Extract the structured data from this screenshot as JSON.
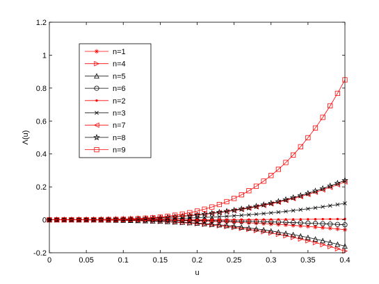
{
  "chart_data": {
    "type": "line",
    "title": "",
    "xlabel": "u",
    "ylabel": "Λ(u)",
    "xlim": [
      0,
      0.4
    ],
    "ylim": [
      -0.2,
      1.2
    ],
    "xticks": [
      0,
      0.05,
      0.1,
      0.15,
      0.2,
      0.25,
      0.3,
      0.35,
      0.4
    ],
    "xtick_labels": [
      "0",
      "0.05",
      "0.1",
      "0.15",
      "0.2",
      "0.25",
      "0.3",
      "0.35",
      "0.4"
    ],
    "yticks": [
      -0.2,
      0,
      0.2,
      0.4,
      0.6,
      0.8,
      1,
      1.2
    ],
    "ytick_labels": [
      "-0.2",
      "0",
      "0.2",
      "0.4",
      "0.6",
      "0.8",
      "1",
      "1.2"
    ],
    "grid": false,
    "legend_position": "top-left",
    "x_samples": {
      "start": 0,
      "end": 0.4,
      "step": 0.01
    },
    "series": [
      {
        "name": "n=1",
        "color": "#ff0000",
        "marker": "asterisk",
        "end_value": -0.06,
        "power": 3
      },
      {
        "name": "n=4",
        "color": "#ff0000",
        "marker": "triangle-right",
        "end_value": -0.19,
        "power": 3
      },
      {
        "name": "n=5",
        "color": "#000000",
        "marker": "triangle-up",
        "end_value": -0.16,
        "power": 3
      },
      {
        "name": "n=6",
        "color": "#000000",
        "marker": "circle",
        "end_value": -0.03,
        "power": 3
      },
      {
        "name": "n=2",
        "color": "#ff0000",
        "marker": "point",
        "end_value": 0.005,
        "power": 3
      },
      {
        "name": "n=3",
        "color": "#000000",
        "marker": "x",
        "end_value": 0.1,
        "power": 3
      },
      {
        "name": "n=7",
        "color": "#ff0000",
        "marker": "triangle-left",
        "end_value": 0.23,
        "power": 3
      },
      {
        "name": "n=8",
        "color": "#000000",
        "marker": "star",
        "end_value": 0.24,
        "power": 3
      },
      {
        "name": "n=9",
        "color": "#ff0000",
        "marker": "square",
        "end_value": 0.85,
        "power": 4
      }
    ]
  }
}
